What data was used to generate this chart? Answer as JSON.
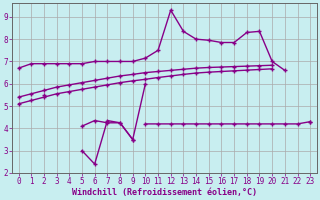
{
  "xlabel": "Windchill (Refroidissement éolien,°C)",
  "background_color": "#c8eef0",
  "grid_color": "#aaaaaa",
  "line_color": "#880088",
  "x_values": [
    0,
    1,
    2,
    3,
    4,
    5,
    6,
    7,
    8,
    9,
    10,
    11,
    12,
    13,
    14,
    15,
    16,
    17,
    18,
    19,
    20,
    21,
    22,
    23
  ],
  "line1_y": [
    6.7,
    6.9,
    6.9,
    6.9,
    6.9,
    6.9,
    7.0,
    7.0,
    7.0,
    7.0,
    7.15,
    7.5,
    9.3,
    8.35,
    8.0,
    7.95,
    7.85,
    7.85,
    8.3,
    8.35,
    7.0,
    6.6,
    null,
    4.3
  ],
  "line2_y": [
    null,
    null,
    null,
    null,
    null,
    null,
    null,
    null,
    null,
    null,
    null,
    null,
    null,
    null,
    null,
    null,
    null,
    null,
    null,
    null,
    null,
    null,
    null,
    null
  ],
  "line_flat_y": [
    null,
    null,
    null,
    null,
    null,
    null,
    null,
    null,
    null,
    null,
    4.2,
    4.2,
    4.2,
    4.2,
    4.2,
    4.2,
    4.2,
    4.2,
    4.2,
    4.2,
    4.2,
    4.2,
    4.2,
    4.3
  ],
  "line_dip_y": [
    null,
    null,
    5.5,
    null,
    null,
    4.1,
    4.35,
    4.25,
    4.25,
    3.5,
    6.0,
    null,
    null,
    null,
    null,
    null,
    null,
    null,
    null,
    null,
    null,
    null,
    null,
    null
  ],
  "line_dip2_y": [
    null,
    null,
    null,
    null,
    null,
    3.0,
    2.4,
    4.35,
    4.25,
    3.5,
    null,
    null,
    null,
    null,
    null,
    null,
    null,
    null,
    null,
    null,
    null,
    null,
    null,
    null
  ],
  "line_rise1_y": [
    5.4,
    5.55,
    5.7,
    5.85,
    5.95,
    6.05,
    6.15,
    6.25,
    6.35,
    6.42,
    6.5,
    6.55,
    6.6,
    6.65,
    6.7,
    6.73,
    6.75,
    6.77,
    6.79,
    6.81,
    6.83,
    null,
    null,
    null
  ],
  "line_rise2_y": [
    5.1,
    5.25,
    5.4,
    5.55,
    5.65,
    5.75,
    5.85,
    5.95,
    6.05,
    6.13,
    6.2,
    6.28,
    6.35,
    6.42,
    6.48,
    6.52,
    6.55,
    6.58,
    6.61,
    6.64,
    6.67,
    null,
    null,
    null
  ],
  "ylim": [
    2.0,
    9.6
  ],
  "xlim": [
    -0.5,
    23.5
  ],
  "yticks": [
    2,
    3,
    4,
    5,
    6,
    7,
    8,
    9
  ],
  "xticks": [
    0,
    1,
    2,
    3,
    4,
    5,
    6,
    7,
    8,
    9,
    10,
    11,
    12,
    13,
    14,
    15,
    16,
    17,
    18,
    19,
    20,
    21,
    22,
    23
  ]
}
